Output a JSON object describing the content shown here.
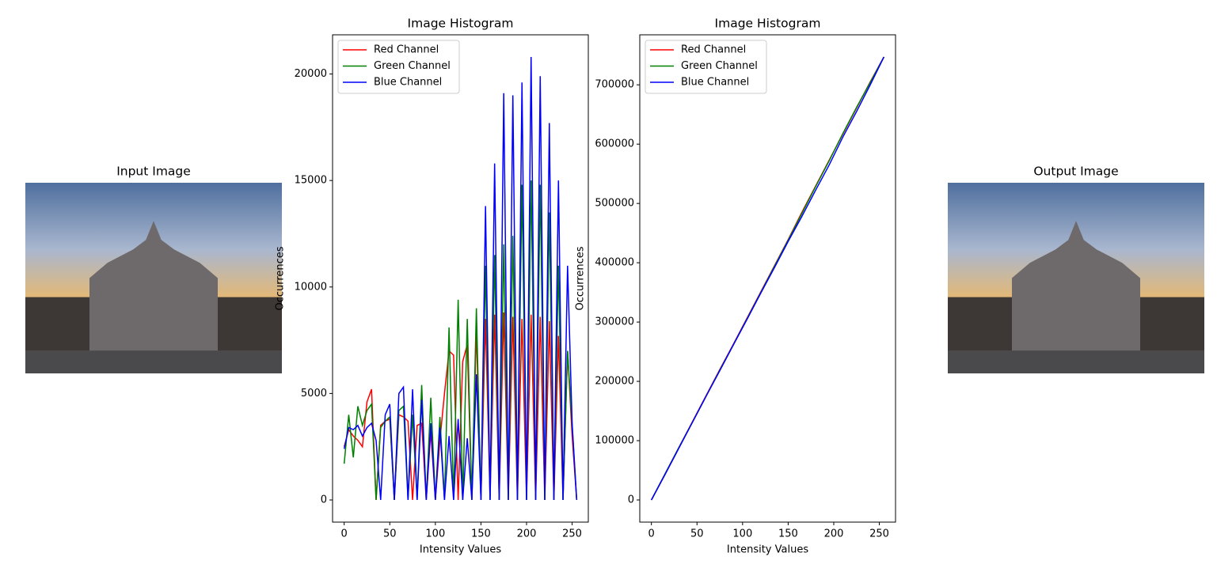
{
  "chart_data": [
    {
      "type": "image",
      "title": "Input Image"
    },
    {
      "type": "line",
      "title": "Image Histogram",
      "x_label": "Intensity Values",
      "y_label": "Occurrences",
      "x": [
        0,
        5,
        10,
        15,
        20,
        25,
        30,
        35,
        40,
        45,
        50,
        55,
        60,
        65,
        70,
        75,
        80,
        85,
        90,
        95,
        100,
        105,
        110,
        115,
        120,
        125,
        130,
        135,
        140,
        145,
        150,
        155,
        160,
        165,
        170,
        175,
        180,
        185,
        190,
        195,
        200,
        205,
        210,
        215,
        220,
        225,
        230,
        235,
        240,
        245,
        250,
        255
      ],
      "series": [
        {
          "name": "Red Channel",
          "color": "#ff0000",
          "values": [
            2500,
            3300,
            3000,
            2800,
            2500,
            4600,
            5200,
            0,
            3500,
            3700,
            3800,
            0,
            4000,
            3900,
            3700,
            0,
            3500,
            3600,
            0,
            3200,
            0,
            2800,
            5000,
            7000,
            6800,
            0,
            6500,
            7300,
            0,
            8000,
            0,
            8500,
            0,
            8700,
            0,
            8800,
            0,
            8600,
            0,
            8500,
            0,
            8700,
            0,
            8600,
            0,
            8400,
            0,
            7700,
            0,
            7000,
            3000,
            0
          ]
        },
        {
          "name": "Green Channel",
          "color": "#008000",
          "values": [
            1700,
            4000,
            2000,
            4400,
            3500,
            4200,
            4500,
            0,
            3400,
            3700,
            3900,
            0,
            4200,
            4400,
            0,
            4000,
            0,
            5400,
            0,
            4800,
            0,
            3900,
            0,
            8100,
            0,
            9400,
            0,
            8500,
            0,
            9000,
            0,
            11000,
            0,
            11500,
            0,
            12000,
            0,
            12400,
            0,
            14800,
            0,
            15000,
            0,
            14800,
            0,
            13500,
            0,
            11000,
            0,
            7000,
            3500,
            0
          ]
        },
        {
          "name": "Blue Channel",
          "color": "#0000ff",
          "values": [
            2400,
            3400,
            3300,
            3500,
            3000,
            3400,
            3600,
            2800,
            0,
            4000,
            4500,
            0,
            5000,
            5300,
            0,
            5200,
            0,
            4700,
            0,
            3600,
            0,
            3400,
            0,
            3000,
            0,
            3800,
            0,
            2900,
            0,
            5900,
            0,
            13800,
            0,
            15800,
            0,
            19100,
            0,
            19000,
            0,
            19600,
            0,
            20800,
            0,
            19900,
            0,
            17700,
            0,
            15000,
            0,
            11000,
            3600,
            0
          ]
        }
      ],
      "xlim": [
        -12.75,
        267.75
      ],
      "xticks": [
        0,
        50,
        100,
        150,
        200,
        250
      ],
      "ylim": [
        -1040,
        21840
      ],
      "yticks": [
        0,
        5000,
        10000,
        15000,
        20000
      ],
      "legend": "upper left"
    },
    {
      "type": "line",
      "title": "Image Histogram",
      "x_label": "Intensity Values",
      "y_label": "Occurrences",
      "x": [
        0,
        15,
        30,
        45,
        60,
        75,
        90,
        105,
        120,
        135,
        150,
        165,
        180,
        195,
        210,
        225,
        240,
        255
      ],
      "series": [
        {
          "name": "Red Channel",
          "color": "#ff0000",
          "values": [
            0,
            44000,
            88000,
            132000,
            176000,
            220000,
            263000,
            307000,
            351000,
            395000,
            439000,
            485000,
            529000,
            573000,
            617000,
            661000,
            705000,
            747000
          ]
        },
        {
          "name": "Green Channel",
          "color": "#008000",
          "values": [
            0,
            44000,
            88000,
            131000,
            175000,
            219000,
            262000,
            306000,
            350000,
            394000,
            438000,
            483000,
            528000,
            572000,
            618000,
            662000,
            704000,
            747000
          ]
        },
        {
          "name": "Blue Channel",
          "color": "#0000ff",
          "values": [
            0,
            43000,
            87000,
            131000,
            175000,
            218000,
            262000,
            305000,
            349000,
            392000,
            436000,
            478000,
            522000,
            565000,
            612000,
            655000,
            700000,
            747000
          ]
        }
      ],
      "xlim": [
        -12.75,
        267.75
      ],
      "xticks": [
        0,
        50,
        100,
        150,
        200,
        250
      ],
      "ylim": [
        -37350,
        784350
      ],
      "yticks": [
        0,
        100000,
        200000,
        300000,
        400000,
        500000,
        600000,
        700000
      ],
      "legend": "upper left"
    },
    {
      "type": "image",
      "title": "Output Image"
    }
  ]
}
